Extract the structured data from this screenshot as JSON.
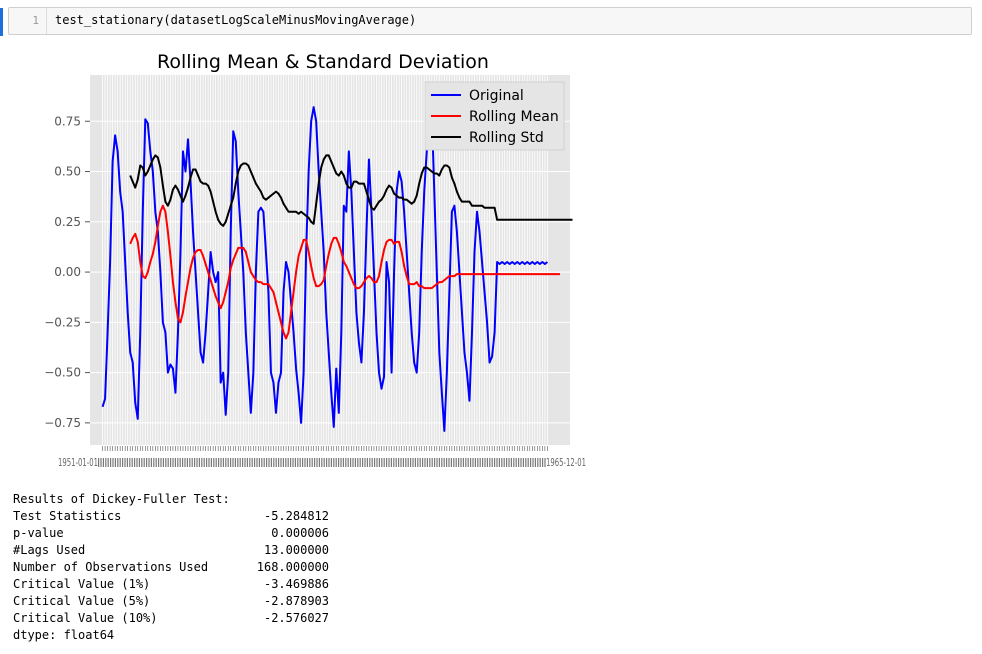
{
  "cell": {
    "line_number": "1",
    "code": "test_stationary(datasetLogScaleMinusMovingAverage)"
  },
  "chart_data": {
    "type": "line",
    "title": "Rolling Mean & Standard Deviation",
    "xlabel": "",
    "ylabel": "",
    "ylim": [
      -0.86,
      0.98
    ],
    "xlim": [
      -5,
      186
    ],
    "y_ticks": [
      "0.75",
      "0.50",
      "0.25",
      "0.00",
      "−0.25",
      "−0.50",
      "−0.75"
    ],
    "y_tick_values": [
      0.75,
      0.5,
      0.25,
      0.0,
      -0.25,
      -0.5,
      -0.75
    ],
    "grid": true,
    "legend_position": "upper right",
    "x_tick_labels_overlapping": true,
    "x_tick_left_label": "1951-01-01",
    "x_tick_right_label": "1965-12-01",
    "series": [
      {
        "name": "Original",
        "color": "#0000ff",
        "values": [
          -0.67,
          -0.63,
          -0.3,
          0.05,
          0.55,
          0.68,
          0.6,
          0.4,
          0.3,
          0.05,
          -0.2,
          -0.4,
          -0.45,
          -0.65,
          -0.73,
          -0.3,
          0.3,
          0.76,
          0.74,
          0.6,
          0.5,
          0.3,
          0.2,
          0.0,
          -0.25,
          -0.3,
          -0.5,
          -0.46,
          -0.48,
          -0.6,
          -0.3,
          0.1,
          0.6,
          0.5,
          0.66,
          0.45,
          0.2,
          0.0,
          -0.2,
          -0.4,
          -0.45,
          -0.3,
          -0.1,
          0.1,
          0.0,
          -0.05,
          0.0,
          -0.55,
          -0.5,
          -0.71,
          -0.5,
          0.2,
          0.7,
          0.65,
          0.4,
          0.2,
          0.0,
          -0.3,
          -0.5,
          -0.7,
          -0.5,
          0.0,
          0.3,
          0.32,
          0.3,
          0.1,
          -0.1,
          -0.5,
          -0.55,
          -0.7,
          -0.55,
          -0.5,
          -0.1,
          0.05,
          0.0,
          -0.15,
          -0.3,
          -0.48,
          -0.6,
          -0.75,
          -0.5,
          0.1,
          0.5,
          0.75,
          0.82,
          0.75,
          0.5,
          0.3,
          0.1,
          -0.2,
          -0.4,
          -0.6,
          -0.77,
          -0.48,
          -0.7,
          -0.3,
          0.33,
          0.3,
          0.6,
          0.4,
          0.1,
          -0.2,
          -0.35,
          -0.45,
          -0.2,
          0.2,
          0.56,
          0.3,
          0.0,
          -0.3,
          -0.5,
          -0.58,
          -0.52,
          0.05,
          -0.05,
          -0.5,
          0.0,
          0.4,
          0.5,
          0.45,
          0.3,
          0.1,
          -0.1,
          -0.3,
          -0.45,
          -0.5,
          -0.3,
          0.1,
          0.4,
          0.6,
          0.88,
          0.8,
          0.4,
          0.0,
          -0.4,
          -0.6,
          -0.79,
          -0.5,
          -0.1,
          0.3,
          0.33,
          0.2,
          0.0,
          -0.2,
          -0.4,
          -0.5,
          -0.64,
          -0.3,
          0.1,
          0.3,
          0.2,
          0.05,
          -0.1,
          -0.25,
          -0.45,
          -0.42,
          -0.3,
          0.05,
          0.04,
          0.05,
          0.04,
          0.05,
          0.04,
          0.05,
          0.04,
          0.05,
          0.04,
          0.05,
          0.04,
          0.05,
          0.04,
          0.05,
          0.04,
          0.05,
          0.04,
          0.05,
          0.04,
          0.05
        ]
      },
      {
        "name": "Rolling Mean",
        "color": "#ff0000",
        "x_start": 11,
        "values": [
          0.14,
          0.17,
          0.19,
          0.15,
          0.05,
          -0.02,
          -0.03,
          0.0,
          0.05,
          0.09,
          0.15,
          0.23,
          0.3,
          0.33,
          0.3,
          0.2,
          0.08,
          -0.05,
          -0.15,
          -0.23,
          -0.25,
          -0.2,
          -0.12,
          -0.05,
          0.02,
          0.07,
          0.1,
          0.11,
          0.11,
          0.08,
          0.04,
          0.0,
          -0.04,
          -0.08,
          -0.12,
          -0.15,
          -0.18,
          -0.15,
          -0.1,
          -0.05,
          0.02,
          0.06,
          0.09,
          0.12,
          0.12,
          0.12,
          0.1,
          0.05,
          0.0,
          -0.02,
          -0.04,
          -0.05,
          -0.05,
          -0.06,
          -0.06,
          -0.06,
          -0.08,
          -0.1,
          -0.15,
          -0.2,
          -0.25,
          -0.3,
          -0.33,
          -0.3,
          -0.2,
          -0.1,
          0.0,
          0.08,
          0.12,
          0.16,
          0.16,
          0.1,
          0.03,
          -0.03,
          -0.07,
          -0.07,
          -0.06,
          -0.04,
          0.03,
          0.09,
          0.14,
          0.17,
          0.17,
          0.14,
          0.1,
          0.05,
          0.03,
          0.0,
          -0.03,
          -0.06,
          -0.08,
          -0.08,
          -0.07,
          -0.05,
          -0.03,
          -0.02,
          -0.03,
          -0.05,
          -0.05,
          -0.02,
          0.05,
          0.11,
          0.15,
          0.16,
          0.16,
          0.14,
          0.15,
          0.15,
          0.1,
          0.03,
          -0.02,
          -0.06,
          -0.06,
          -0.06,
          -0.05,
          -0.07,
          -0.07,
          -0.08,
          -0.08,
          -0.08,
          -0.08,
          -0.07,
          -0.06,
          -0.05,
          -0.05,
          -0.04,
          -0.03,
          -0.02,
          -0.02,
          -0.02,
          -0.01,
          -0.01,
          -0.01,
          -0.01,
          -0.01,
          -0.01,
          -0.01,
          -0.01,
          -0.01,
          -0.01,
          -0.01,
          -0.01,
          -0.01,
          -0.01,
          -0.01,
          -0.01,
          -0.01,
          -0.01,
          -0.01,
          -0.01,
          -0.01,
          -0.01,
          -0.01,
          -0.01,
          -0.01,
          -0.01,
          -0.01,
          -0.01,
          -0.01,
          -0.01,
          -0.01,
          -0.01,
          -0.01,
          -0.01,
          -0.01,
          -0.01,
          -0.01,
          -0.01,
          -0.01,
          -0.01,
          -0.01,
          -0.01
        ]
      },
      {
        "name": "Rolling Std",
        "color": "#000000",
        "x_start": 11,
        "values": [
          0.48,
          0.45,
          0.42,
          0.46,
          0.53,
          0.52,
          0.48,
          0.5,
          0.53,
          0.56,
          0.58,
          0.57,
          0.52,
          0.43,
          0.35,
          0.33,
          0.36,
          0.41,
          0.43,
          0.41,
          0.38,
          0.35,
          0.38,
          0.42,
          0.47,
          0.51,
          0.51,
          0.48,
          0.45,
          0.44,
          0.44,
          0.43,
          0.4,
          0.35,
          0.3,
          0.26,
          0.24,
          0.23,
          0.25,
          0.29,
          0.33,
          0.37,
          0.44,
          0.5,
          0.53,
          0.54,
          0.54,
          0.53,
          0.5,
          0.47,
          0.44,
          0.42,
          0.4,
          0.37,
          0.36,
          0.37,
          0.38,
          0.39,
          0.4,
          0.39,
          0.37,
          0.34,
          0.32,
          0.3,
          0.3,
          0.3,
          0.3,
          0.29,
          0.3,
          0.29,
          0.28,
          0.27,
          0.25,
          0.24,
          0.34,
          0.44,
          0.52,
          0.56,
          0.58,
          0.58,
          0.55,
          0.52,
          0.49,
          0.48,
          0.5,
          0.48,
          0.44,
          0.42,
          0.42,
          0.45,
          0.45,
          0.44,
          0.44,
          0.44,
          0.4,
          0.36,
          0.32,
          0.31,
          0.33,
          0.35,
          0.36,
          0.38,
          0.41,
          0.43,
          0.42,
          0.39,
          0.38,
          0.37,
          0.37,
          0.36,
          0.36,
          0.35,
          0.34,
          0.35,
          0.38,
          0.44,
          0.49,
          0.52,
          0.52,
          0.51,
          0.5,
          0.49,
          0.49,
          0.48,
          0.51,
          0.53,
          0.53,
          0.52,
          0.47,
          0.44,
          0.4,
          0.37,
          0.35,
          0.35,
          0.35,
          0.35,
          0.33,
          0.33,
          0.33,
          0.33,
          0.33,
          0.32,
          0.32,
          0.32,
          0.32,
          0.32,
          0.26,
          0.26,
          0.26,
          0.26,
          0.26,
          0.26,
          0.26,
          0.26,
          0.26,
          0.26,
          0.26,
          0.26,
          0.26,
          0.26,
          0.26,
          0.26,
          0.26,
          0.26,
          0.26,
          0.26,
          0.26,
          0.26,
          0.26,
          0.26,
          0.26,
          0.26,
          0.26,
          0.26,
          0.26,
          0.26,
          0.26
        ]
      }
    ]
  },
  "output": {
    "header": "Results of Dickey-Fuller Test:",
    "rows": [
      {
        "label": "Test Statistics",
        "value": "-5.284812"
      },
      {
        "label": "p-value",
        "value": "0.000006"
      },
      {
        "label": "#Lags Used",
        "value": "13.000000"
      },
      {
        "label": "Number of Observations Used",
        "value": "168.000000"
      },
      {
        "label": "Critical Value (1%)",
        "value": "-3.469886"
      },
      {
        "label": "Critical Value (5%)",
        "value": "-2.878903"
      },
      {
        "label": "Critical Value (10%)",
        "value": "-2.576027"
      }
    ],
    "footer": "dtype: float64"
  }
}
